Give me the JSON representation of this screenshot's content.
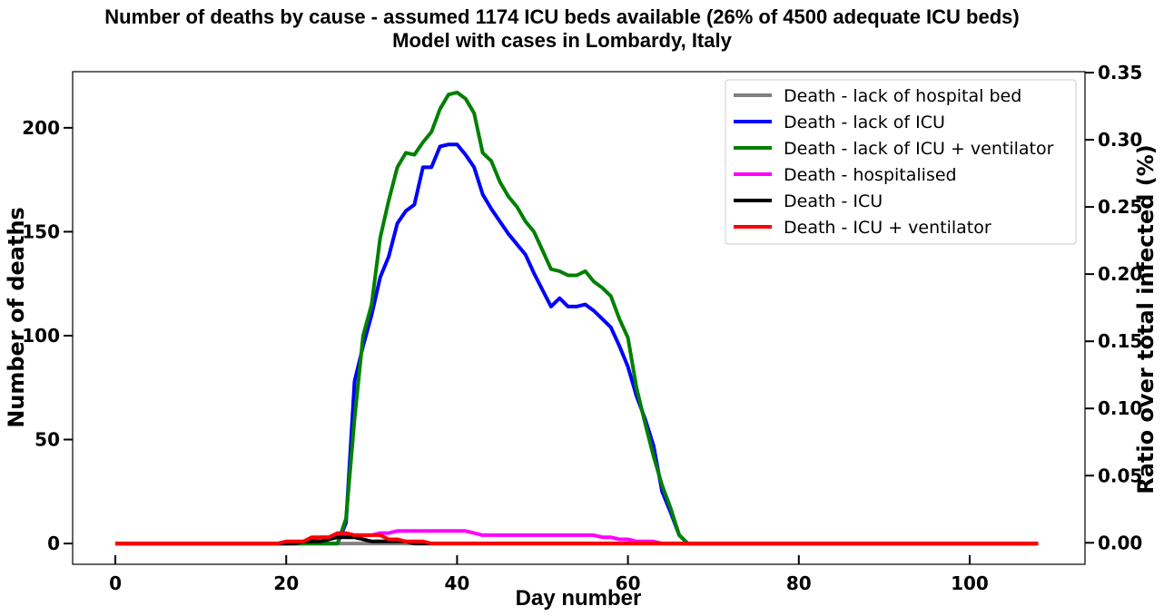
{
  "chart_data": {
    "type": "line",
    "title": "Number of deaths by cause - assumed 1174 ICU beds available (26% of 4500 adequate ICU beds)",
    "subtitle": "Model with cases in Lombardy, Italy",
    "xlabel": "Day number",
    "ylabel": "Number of deaths",
    "y2label": "Ratio over total infected (%)",
    "xlim": [
      -5,
      113.5
    ],
    "ylim": [
      -10,
      227
    ],
    "y2lim": [
      -0.016,
      0.3507
    ],
    "xticks": [
      0,
      20,
      40,
      60,
      80,
      100
    ],
    "yticks": [
      0,
      50,
      100,
      150,
      200
    ],
    "y2ticks": [
      "0.00",
      "0.05",
      "0.10",
      "0.15",
      "0.20",
      "0.25",
      "0.30",
      "0.35"
    ],
    "grid": false,
    "legend_position": "top-right",
    "x": [
      0,
      1,
      2,
      3,
      4,
      5,
      6,
      7,
      8,
      9,
      10,
      11,
      12,
      13,
      14,
      15,
      16,
      17,
      18,
      19,
      20,
      21,
      22,
      23,
      24,
      25,
      26,
      27,
      28,
      29,
      30,
      31,
      32,
      33,
      34,
      35,
      36,
      37,
      38,
      39,
      40,
      41,
      42,
      43,
      44,
      45,
      46,
      47,
      48,
      49,
      50,
      51,
      52,
      53,
      54,
      55,
      56,
      57,
      58,
      59,
      60,
      61,
      62,
      63,
      64,
      65,
      66,
      67,
      68,
      69,
      70,
      71,
      72,
      73,
      74,
      75,
      76,
      77,
      78,
      79,
      80,
      81,
      82,
      83,
      84,
      85,
      86,
      87,
      88,
      89,
      90,
      91,
      92,
      93,
      94,
      95,
      96,
      97,
      98,
      99,
      100,
      101,
      102,
      103,
      104,
      105,
      106,
      107,
      108
    ],
    "series": [
      {
        "name": "Death - lack of hospital bed",
        "color": "#808080",
        "values": [
          0,
          0,
          0,
          0,
          0,
          0,
          0,
          0,
          0,
          0,
          0,
          0,
          0,
          0,
          0,
          0,
          0,
          0,
          0,
          0,
          0,
          0,
          0,
          0,
          0,
          0,
          0,
          0,
          0,
          0,
          0,
          0,
          0,
          0,
          0,
          0,
          0,
          0,
          0,
          0,
          0,
          0,
          0,
          0,
          0,
          0,
          0,
          0,
          0,
          0,
          0,
          0,
          0,
          0,
          0,
          0,
          0,
          0,
          0,
          0,
          0,
          0,
          0,
          0,
          0,
          0,
          0,
          0,
          0,
          0,
          0,
          0,
          0,
          0,
          0,
          0,
          0,
          0,
          0,
          0,
          0,
          0,
          0,
          0,
          0,
          0,
          0,
          0,
          0,
          0,
          0,
          0,
          0,
          0,
          0,
          0,
          0,
          0,
          0,
          0,
          0,
          0,
          0,
          0,
          0,
          0,
          0,
          0,
          0
        ]
      },
      {
        "name": "Death - lack of ICU",
        "color": "#0000ff",
        "values": [
          0,
          0,
          0,
          0,
          0,
          0,
          0,
          0,
          0,
          0,
          0,
          0,
          0,
          0,
          0,
          0,
          0,
          0,
          0,
          0,
          0,
          0,
          0,
          0,
          0,
          0,
          0,
          10,
          78,
          95,
          110,
          128,
          138,
          154,
          160,
          163,
          181,
          181,
          191,
          192,
          192,
          187,
          181,
          168,
          161,
          155,
          149,
          144,
          139,
          130,
          122,
          114,
          118,
          114,
          114,
          115,
          112,
          108,
          104,
          95,
          85,
          71,
          60,
          47,
          25,
          15,
          4,
          0,
          0,
          0,
          0,
          0,
          0,
          0,
          0,
          0,
          0,
          0,
          0,
          0,
          0,
          0,
          0,
          0,
          0,
          0,
          0,
          0,
          0,
          0,
          0,
          0,
          0,
          0,
          0,
          0,
          0,
          0,
          0,
          0,
          0,
          0,
          0,
          0,
          0,
          0,
          0,
          0,
          0
        ]
      },
      {
        "name": "Death - lack of ICU + ventilator",
        "color": "#008000",
        "values": [
          0,
          0,
          0,
          0,
          0,
          0,
          0,
          0,
          0,
          0,
          0,
          0,
          0,
          0,
          0,
          0,
          0,
          0,
          0,
          0,
          0,
          0,
          0,
          0,
          0,
          0,
          0,
          12,
          60,
          100,
          115,
          147,
          165,
          181,
          188,
          187,
          193,
          198,
          209,
          216,
          217,
          214,
          207,
          188,
          184,
          174,
          167,
          162,
          155,
          150,
          141,
          132,
          131,
          129,
          129,
          131,
          126,
          123,
          119,
          108,
          99,
          75,
          58,
          42,
          28,
          17,
          4,
          0,
          0,
          0,
          0,
          0,
          0,
          0,
          0,
          0,
          0,
          0,
          0,
          0,
          0,
          0,
          0,
          0,
          0,
          0,
          0,
          0,
          0,
          0,
          0,
          0,
          0,
          0,
          0,
          0,
          0,
          0,
          0,
          0,
          0,
          0,
          0,
          0,
          0,
          0,
          0,
          0,
          0
        ]
      },
      {
        "name": "Death - hospitalised",
        "color": "#ff00ff",
        "values": [
          0,
          0,
          0,
          0,
          0,
          0,
          0,
          0,
          0,
          0,
          0,
          0,
          0,
          0,
          0,
          0,
          0,
          0,
          0,
          0,
          0,
          0,
          1,
          2,
          3,
          3,
          4,
          4,
          4,
          4,
          4,
          5,
          5,
          6,
          6,
          6,
          6,
          6,
          6,
          6,
          6,
          6,
          5,
          4,
          4,
          4,
          4,
          4,
          4,
          4,
          4,
          4,
          4,
          4,
          4,
          4,
          4,
          3,
          3,
          2,
          2,
          1,
          1,
          1,
          0,
          0,
          0,
          0,
          0,
          0,
          0,
          0,
          0,
          0,
          0,
          0,
          0,
          0,
          0,
          0,
          0,
          0,
          0,
          0,
          0,
          0,
          0,
          0,
          0,
          0,
          0,
          0,
          0,
          0,
          0,
          0,
          0,
          0,
          0,
          0,
          0,
          0,
          0,
          0,
          0,
          0,
          0,
          0,
          0
        ]
      },
      {
        "name": "Death - ICU",
        "color": "#000000",
        "values": [
          0,
          0,
          0,
          0,
          0,
          0,
          0,
          0,
          0,
          0,
          0,
          0,
          0,
          0,
          0,
          0,
          0,
          0,
          0,
          0,
          0,
          0,
          1,
          1,
          1,
          2,
          3,
          3,
          3,
          2,
          1,
          1,
          1,
          1,
          1,
          0,
          0,
          0,
          0,
          0,
          0,
          0,
          0,
          0,
          0,
          0,
          0,
          0,
          0,
          0,
          0,
          0,
          0,
          0,
          0,
          0,
          0,
          0,
          0,
          0,
          0,
          0,
          0,
          0,
          0,
          0,
          0,
          0,
          0,
          0,
          0,
          0,
          0,
          0,
          0,
          0,
          0,
          0,
          0,
          0,
          0,
          0,
          0,
          0,
          0,
          0,
          0,
          0,
          0,
          0,
          0,
          0,
          0,
          0,
          0,
          0,
          0,
          0,
          0,
          0,
          0,
          0,
          0,
          0,
          0,
          0,
          0,
          0,
          0
        ]
      },
      {
        "name": "Death - ICU + ventilator",
        "color": "#ff0000",
        "values": [
          0,
          0,
          0,
          0,
          0,
          0,
          0,
          0,
          0,
          0,
          0,
          0,
          0,
          0,
          0,
          0,
          0,
          0,
          0,
          0,
          1,
          1,
          1,
          3,
          3,
          3,
          5,
          5,
          4,
          4,
          4,
          4,
          2,
          2,
          1,
          1,
          1,
          0,
          0,
          0,
          0,
          0,
          0,
          0,
          0,
          0,
          0,
          0,
          0,
          0,
          0,
          0,
          0,
          0,
          0,
          0,
          0,
          0,
          0,
          0,
          0,
          0,
          0,
          0,
          0,
          0,
          0,
          0,
          0,
          0,
          0,
          0,
          0,
          0,
          0,
          0,
          0,
          0,
          0,
          0,
          0,
          0,
          0,
          0,
          0,
          0,
          0,
          0,
          0,
          0,
          0,
          0,
          0,
          0,
          0,
          0,
          0,
          0,
          0,
          0,
          0,
          0,
          0,
          0,
          0,
          0,
          0,
          0,
          0
        ]
      }
    ]
  }
}
